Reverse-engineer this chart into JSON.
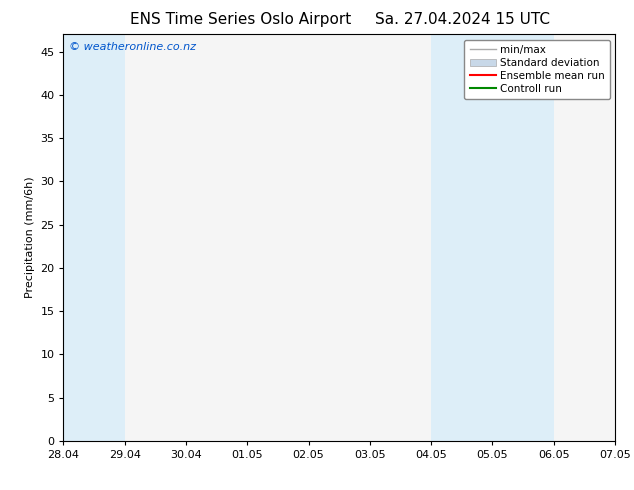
{
  "title_left": "ENS Time Series Oslo Airport",
  "title_right": "Sa. 27.04.2024 15 UTC",
  "ylabel": "Precipitation (mm/6h)",
  "watermark": "© weatheronline.co.nz",
  "xlim_left": 0,
  "xlim_right": 9,
  "ylim_bottom": 0,
  "ylim_top": 47,
  "yticks": [
    0,
    5,
    10,
    15,
    20,
    25,
    30,
    35,
    40,
    45
  ],
  "xtick_labels": [
    "28.04",
    "29.04",
    "30.04",
    "01.05",
    "02.05",
    "03.05",
    "04.05",
    "05.05",
    "06.05",
    "07.05"
  ],
  "xtick_positions": [
    0,
    1,
    2,
    3,
    4,
    5,
    6,
    7,
    8,
    9
  ],
  "shaded_bands": [
    {
      "xmin": -0.5,
      "xmax": 0.5
    },
    {
      "xmin": 5.5,
      "xmax": 7.5
    },
    {
      "xmin": 8.5,
      "xmax": 9.5
    }
  ],
  "shade_color": "#ddeef8",
  "background_color": "#ffffff",
  "plot_bg_color": "#f5f5f5",
  "legend_entries": [
    {
      "label": "min/max"
    },
    {
      "label": "Standard deviation"
    },
    {
      "label": "Ensemble mean run"
    },
    {
      "label": "Controll run"
    }
  ],
  "font_size_title": 11,
  "font_size_legend": 7.5,
  "font_size_axis": 8,
  "font_size_watermark": 8,
  "minmax_color": "#aaaaaa",
  "std_color": "#c8d8e8",
  "ensemble_color": "#ff0000",
  "control_color": "#008800"
}
